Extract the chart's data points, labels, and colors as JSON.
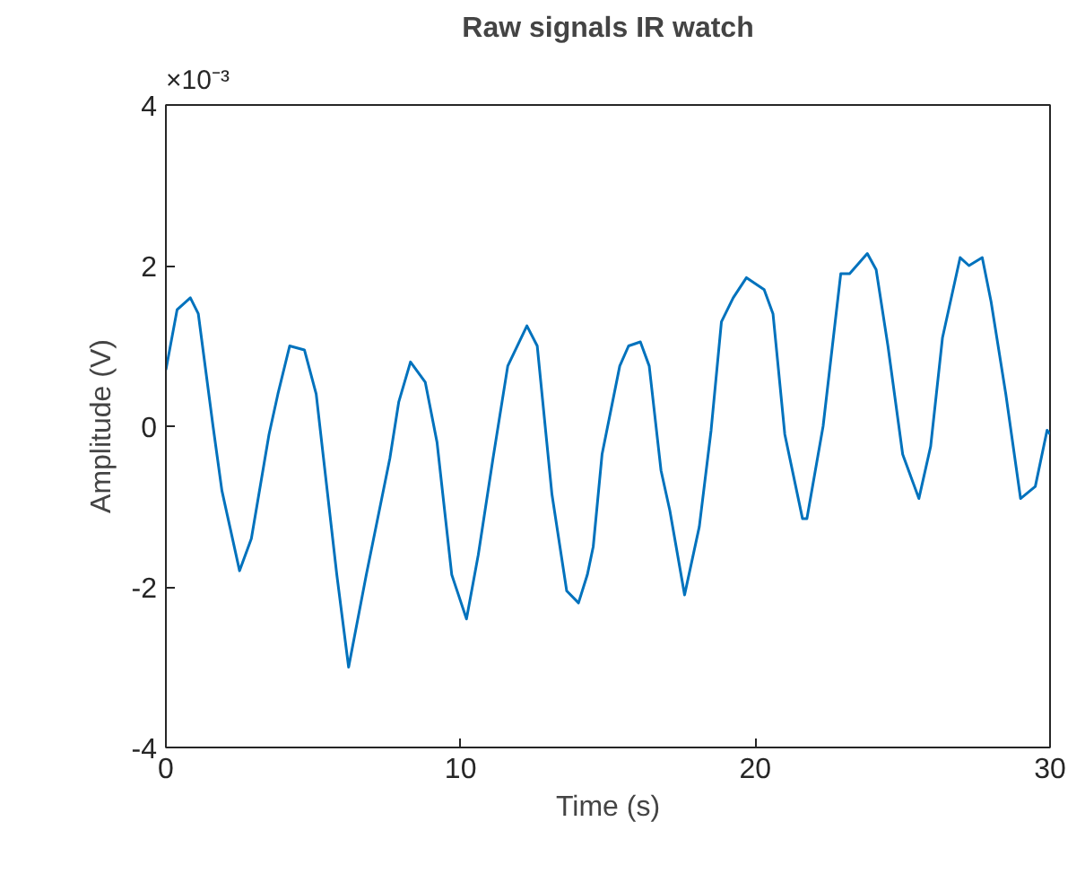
{
  "chart_data": {
    "type": "line",
    "title": "Raw signals IR watch",
    "xlabel": "Time (s)",
    "ylabel": "Amplitude (V)",
    "annotations": [
      "×10⁻³"
    ],
    "xlim": [
      0,
      30
    ],
    "xticks": [
      0,
      10,
      20,
      30
    ],
    "ylim": [
      -4,
      4
    ],
    "yticks": [
      -4,
      -2,
      0,
      2,
      4
    ],
    "grid": false,
    "marker": "none",
    "line_style": "solid",
    "series": [
      {
        "color": "#0072bd",
        "x": [
          0,
          0.38,
          0.83,
          1.1,
          1.6,
          1.9,
          2.5,
          2.9,
          3.5,
          3.8,
          4.2,
          4.7,
          5.1,
          5.8,
          6.2,
          6.8,
          7.6,
          7.9,
          8.3,
          8.8,
          9.2,
          9.7,
          10.2,
          10.6,
          11.1,
          11.6,
          12.25,
          12.6,
          13.1,
          13.6,
          14.0,
          14.3,
          14.5,
          14.8,
          15.4,
          15.7,
          16.1,
          16.4,
          16.8,
          17.1,
          17.6,
          18.1,
          18.5,
          18.85,
          19.25,
          19.7,
          20.3,
          20.6,
          21.0,
          21.6,
          21.75,
          22.3,
          22.9,
          23.2,
          23.8,
          24.1,
          24.5,
          25.0,
          25.55,
          25.95,
          26.35,
          26.95,
          27.25,
          27.7,
          28.0,
          28.5,
          29.0,
          29.5,
          29.9,
          30
        ],
        "values": [
          0.7,
          1.45,
          1.6,
          1.4,
          0,
          -0.8,
          -1.8,
          -1.4,
          -0.1,
          0.4,
          1.0,
          0.95,
          0.4,
          -1.85,
          -3.0,
          -1.85,
          -0.4,
          0.3,
          0.8,
          0.55,
          -0.2,
          -1.85,
          -2.4,
          -1.6,
          -0.4,
          0.75,
          1.25,
          1.0,
          -0.85,
          -2.05,
          -2.2,
          -1.85,
          -1.5,
          -0.35,
          0.75,
          1.0,
          1.05,
          0.75,
          -0.55,
          -1.05,
          -2.1,
          -1.25,
          -0.05,
          1.3,
          1.6,
          1.85,
          1.7,
          1.4,
          -0.1,
          -1.15,
          -1.15,
          0,
          1.9,
          1.9,
          2.15,
          1.95,
          1.0,
          -0.35,
          -0.9,
          -0.25,
          1.1,
          2.1,
          2.0,
          2.1,
          1.55,
          0.4,
          -0.9,
          -0.75,
          -0.05,
          -0.1
        ]
      }
    ]
  }
}
